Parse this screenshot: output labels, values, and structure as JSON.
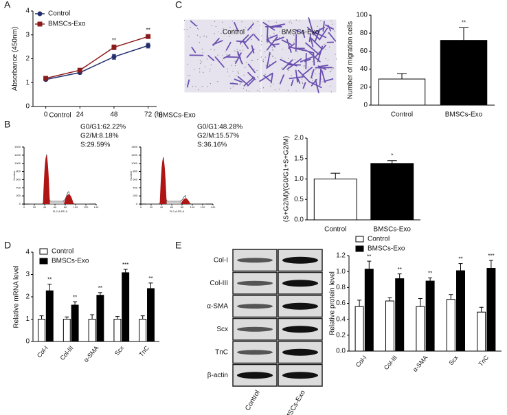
{
  "chart_data": [
    {
      "type": "line",
      "panel": "A",
      "ylabel": "Absorbance (450nm)",
      "xlabel": "(h)",
      "x": [
        0,
        24,
        48,
        72
      ],
      "xlim": [
        -9,
        78
      ],
      "xticks": [
        0,
        24,
        48,
        72
      ],
      "ylim": [
        0,
        4
      ],
      "yticks": [
        0,
        1,
        2,
        3,
        4
      ],
      "legend": "upper left",
      "series": [
        {
          "name": "Control",
          "color": "#22306e",
          "marker": "circle",
          "values": [
            1.13,
            1.42,
            2.08,
            2.55
          ],
          "errors": [
            0.05,
            0.06,
            0.1,
            0.1
          ]
        },
        {
          "name": "BMSCs-Exo",
          "color": "#8b1c1c",
          "marker": "square",
          "values": [
            1.18,
            1.52,
            2.48,
            2.93
          ],
          "errors": [
            0.05,
            0.06,
            0.1,
            0.08
          ],
          "significance": [
            null,
            null,
            "**",
            "**"
          ]
        }
      ]
    },
    {
      "type": "bar",
      "panel": "C",
      "ylabel": "Number of migration cells",
      "categories": [
        "Control",
        "BMSCs-Exo"
      ],
      "values": [
        29,
        72
      ],
      "errors": [
        6,
        14
      ],
      "colors": [
        "#ffffff",
        "#000000"
      ],
      "significance": [
        null,
        "**"
      ],
      "ylim": [
        0,
        100
      ],
      "yticks": [
        0,
        20,
        40,
        60,
        80,
        100
      ]
    },
    {
      "type": "flow",
      "panel": "B",
      "title": "Control",
      "stats": [
        "G0/G1:62.22%",
        "G2/M:8.18%",
        "S:29.59%"
      ],
      "xlabel": "FL2-A:PE-A",
      "ylabel": "Number",
      "xlim": [
        0,
        140
      ],
      "xticks": [
        0,
        20,
        40,
        60,
        80,
        100,
        120,
        140
      ],
      "ylim": [
        0,
        1400
      ],
      "yticks": [
        0,
        200,
        400,
        600,
        800,
        1000,
        1200,
        1400
      ]
    },
    {
      "type": "flow",
      "title": "BMSCs-Exo",
      "stats": [
        "G0/G1:48.28%",
        "G2/M:15.57%",
        "S:36.16%"
      ],
      "xlabel": "FL2-A:PE-A",
      "ylabel": "Number",
      "xlim": [
        0,
        140
      ],
      "xticks": [
        0,
        20,
        40,
        60,
        80,
        100,
        120,
        140
      ],
      "ylim": [
        0,
        1400
      ],
      "yticks": [
        0,
        200,
        400,
        600,
        800,
        1000,
        1200,
        1400
      ]
    },
    {
      "type": "bar",
      "ylabel": "(S+G2/M)/(G0/G1+S+G2/M)",
      "categories": [
        "Control",
        "BMSCs-Exo"
      ],
      "values": [
        1.0,
        1.38
      ],
      "errors": [
        0.14,
        0.07
      ],
      "colors": [
        "#ffffff",
        "#000000"
      ],
      "significance": [
        null,
        "*"
      ],
      "ylim": [
        0,
        2
      ],
      "yticks": [
        {
          "value": 0,
          "label": "0.0"
        },
        0.5,
        {
          "value": 1,
          "label": "1.0"
        },
        1.5,
        {
          "value": 2,
          "label": "2.0"
        }
      ]
    },
    {
      "type": "grouped_bar",
      "panel": "D",
      "ylabel": "Relative mRNA level",
      "categories": [
        "Col-I",
        "Col-III",
        "α-SMA",
        "Scx",
        "TnC"
      ],
      "ylim": [
        0,
        4
      ],
      "yticks": [
        0,
        1,
        2,
        3,
        4
      ],
      "legend": "upper left",
      "series": [
        {
          "name": "Control",
          "color": "#ffffff",
          "values": [
            1,
            1,
            1,
            1,
            1
          ],
          "errors": [
            0.15,
            0.1,
            0.2,
            0.12,
            0.15
          ]
        },
        {
          "name": "BMSCs-Exo",
          "color": "#000000",
          "values": [
            2.27,
            1.63,
            2.07,
            3.08,
            2.37
          ],
          "errors": [
            0.3,
            0.15,
            0.12,
            0.15,
            0.25
          ],
          "significance": [
            "**",
            "**",
            "**",
            "***",
            "**"
          ]
        }
      ]
    },
    {
      "type": "grouped_bar",
      "panel": "E",
      "ylabel": "Relative protein level",
      "categories": [
        "Col-I",
        "Col-III",
        "α-SMA",
        "Scx",
        "TnC"
      ],
      "ylim": [
        0,
        1.2
      ],
      "yticks": [
        {
          "value": 0,
          "label": "0.0"
        },
        0.2,
        0.4,
        0.6,
        0.8,
        {
          "value": 1,
          "label": "1.0"
        },
        1.2
      ],
      "legend": "upper left",
      "series": [
        {
          "name": "Control",
          "color": "#ffffff",
          "values": [
            0.56,
            0.63,
            0.56,
            0.65,
            0.49
          ],
          "errors": [
            0.08,
            0.04,
            0.1,
            0.06,
            0.06
          ]
        },
        {
          "name": "BMSCs-Exo",
          "color": "#000000",
          "values": [
            1.03,
            0.91,
            0.88,
            1.01,
            1.04
          ],
          "errors": [
            0.1,
            0.06,
            0.04,
            0.09,
            0.1
          ],
          "significance": [
            "**",
            "**",
            "**",
            "**",
            "***"
          ]
        }
      ]
    }
  ],
  "images": {
    "labels": [
      "Control",
      "BMSCs-Exo"
    ]
  },
  "blot": {
    "bands": [
      "Col-I",
      "Col-III",
      "α-SMA",
      "Scx",
      "TnC",
      "β-actin"
    ],
    "lanes": [
      "Control",
      "BMSCs-Exo"
    ]
  }
}
